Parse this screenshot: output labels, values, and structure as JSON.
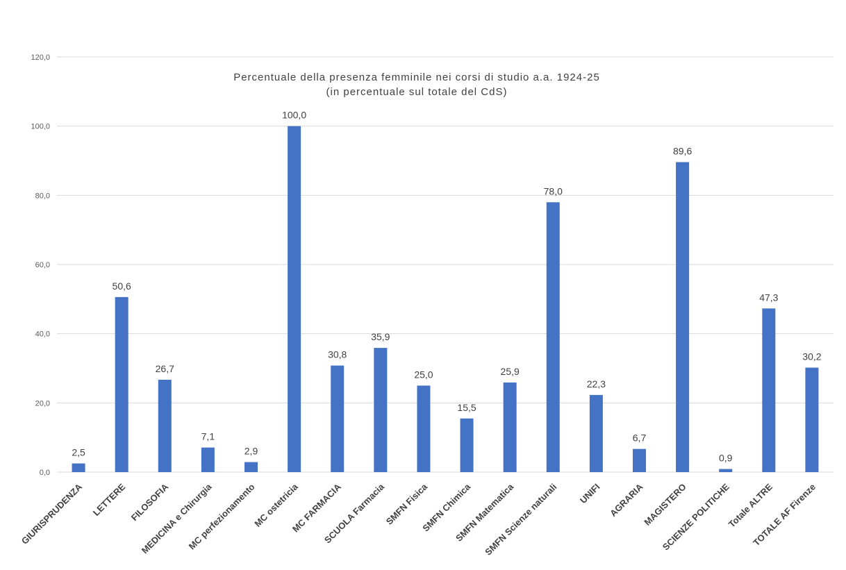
{
  "chart_data": {
    "type": "bar",
    "title": "Percentuale della presenza femminile nei corsi di studio a.a. 1924-25",
    "subtitle": "(in percentuale sul totale del CdS)",
    "xlabel": "",
    "ylabel": "",
    "ylim": [
      0,
      120
    ],
    "yticks": [
      "0,0",
      "20,0",
      "40,0",
      "60,0",
      "80,0",
      "100,0",
      "120,0"
    ],
    "grid": true,
    "bar_color": "#4472C4",
    "categories": [
      "GIURISPRUDENZA",
      "LETTERE",
      "FILOSOFIA",
      "MEDICINA e Chirurgia",
      "MC perfezionamento",
      "MC ostetricia",
      "MC FARMACIA",
      "SCUOLA Farmacia",
      "SMFN Fisica",
      "SMFN Chimica",
      "SMFN Matematica",
      "SMFN Scienze naturali",
      "UNIFI",
      "AGRARIA",
      "MAGISTERO",
      "SCIENZE POLITICHE",
      "Totale ALTRE",
      "TOTALE AF Firenze"
    ],
    "values": [
      2.5,
      50.6,
      26.7,
      7.1,
      2.9,
      100.0,
      30.8,
      35.9,
      25.0,
      15.5,
      25.9,
      78.0,
      22.3,
      6.7,
      89.6,
      0.9,
      47.3,
      30.2
    ],
    "data_labels": [
      "2,5",
      "50,6",
      "26,7",
      "7,1",
      "2,9",
      "100,0",
      "30,8",
      "35,9",
      "25,0",
      "15,5",
      "25,9",
      "78,0",
      "22,3",
      "6,7",
      "89,6",
      "0,9",
      "47,3",
      "30,2"
    ]
  }
}
